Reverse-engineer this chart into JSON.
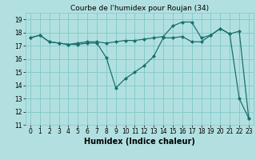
{
  "title": "Courbe de l'humidex pour Roujan (34)",
  "xlabel": "Humidex (Indice chaleur)",
  "bg_color": "#b2e0e0",
  "grid_color": "#80c8c8",
  "line_color": "#1a7070",
  "xlim": [
    -0.5,
    23.5
  ],
  "ylim": [
    11,
    19.5
  ],
  "xticks": [
    0,
    1,
    2,
    3,
    4,
    5,
    6,
    7,
    8,
    9,
    10,
    11,
    12,
    13,
    14,
    15,
    16,
    17,
    18,
    19,
    20,
    21,
    22,
    23
  ],
  "yticks": [
    11,
    12,
    13,
    14,
    15,
    16,
    17,
    18,
    19
  ],
  "line1_x": [
    0,
    1,
    2,
    3,
    4,
    5,
    6,
    7,
    8,
    9,
    10,
    11,
    12,
    13,
    14,
    15,
    16,
    17,
    18,
    19,
    20,
    21,
    22,
    23
  ],
  "line1_y": [
    17.6,
    17.8,
    17.3,
    17.2,
    17.1,
    17.1,
    17.2,
    17.2,
    16.1,
    13.8,
    14.5,
    15.0,
    15.5,
    16.2,
    17.6,
    17.6,
    17.7,
    17.3,
    17.3,
    17.8,
    18.3,
    17.9,
    13.0,
    11.5
  ],
  "line2_x": [
    0,
    1,
    2,
    3,
    4,
    5,
    6,
    7,
    8,
    9,
    10,
    11,
    12,
    13,
    14,
    15,
    16,
    17,
    18,
    19,
    20,
    21,
    22,
    23
  ],
  "line2_y": [
    17.6,
    17.8,
    17.3,
    17.2,
    17.1,
    17.2,
    17.3,
    17.3,
    17.2,
    17.3,
    17.4,
    17.4,
    17.5,
    17.6,
    17.7,
    18.5,
    18.8,
    18.8,
    17.6,
    17.8,
    18.3,
    17.9,
    18.1,
    11.5
  ],
  "title_fontsize": 6.5,
  "xlabel_fontsize": 7,
  "tick_fontsize": 5.5
}
